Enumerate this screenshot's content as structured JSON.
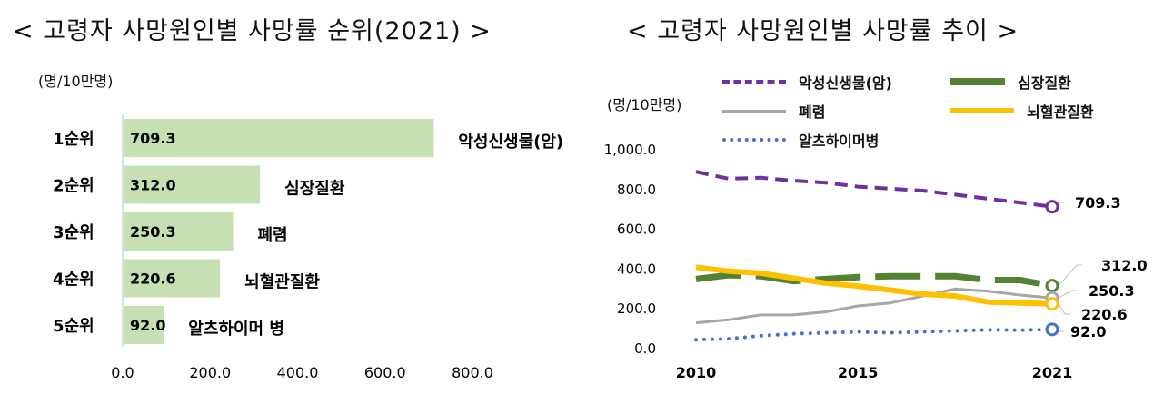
{
  "left_chart": {
    "title": "< 고령자 사망원인별 사망률 순위(2021) >",
    "unit": "(명/10만명)"
  },
  "right_chart": {
    "title": "< 고령자 사망원인별 사망률 추이 >",
    "unit": "(명/10만명)"
  },
  "colors": {
    "bar": "#c6e0b4",
    "cancer": "#7030a0",
    "heart": "#548235",
    "pneumonia": "#a6a6a6",
    "stroke": "#ffc000",
    "alzheimer": "#4472c4"
  },
  "chart_data": [
    {
      "type": "bar",
      "orientation": "horizontal",
      "categories": [
        "1순위",
        "2순위",
        "3순위",
        "4순위",
        "5순위"
      ],
      "values": [
        709.3,
        312.0,
        250.3,
        220.6,
        92.0
      ],
      "value_labels": [
        "709.3",
        "312.0",
        "250.3",
        "220.6",
        "92.0"
      ],
      "bar_names": [
        "악성신생물(암)",
        "심장질환",
        "폐렴",
        "뇌혈관질환",
        "알츠하이머 병"
      ],
      "xlim": [
        0,
        800
      ],
      "x_ticks": [
        "0.0",
        "200.0",
        "400.0",
        "600.0",
        "800.0"
      ],
      "grid": false
    },
    {
      "type": "line",
      "x": [
        2010,
        2011,
        2012,
        2013,
        2014,
        2015,
        2016,
        2017,
        2018,
        2019,
        2020,
        2021
      ],
      "x_ticks": [
        "2010",
        "2015",
        "2021"
      ],
      "ylim": [
        0,
        1000
      ],
      "y_ticks": [
        "0.0",
        "200.0",
        "400.0",
        "600.0",
        "800.0",
        "1,000.0"
      ],
      "grid": false,
      "legend_position": "top",
      "series": [
        {
          "name": "악성신생물(암)",
          "key": "cancer",
          "style": "dashed",
          "values": [
            885,
            850,
            855,
            840,
            830,
            810,
            800,
            790,
            770,
            750,
            730,
            709.3
          ],
          "end_label": "709.3"
        },
        {
          "name": "심장질환",
          "key": "heart",
          "style": "long-dashed",
          "values": [
            345,
            365,
            360,
            335,
            345,
            355,
            360,
            360,
            360,
            340,
            340,
            312.0
          ],
          "end_label": "312.0"
        },
        {
          "name": "폐렴",
          "key": "pneumonia",
          "style": "solid",
          "values": [
            125,
            140,
            165,
            165,
            180,
            210,
            225,
            260,
            295,
            285,
            265,
            250.3
          ],
          "end_label": "250.3"
        },
        {
          "name": "뇌혈관질환",
          "key": "stroke",
          "style": "solid",
          "values": [
            405,
            385,
            375,
            350,
            325,
            310,
            290,
            270,
            260,
            230,
            225,
            220.6
          ],
          "end_label": "220.6"
        },
        {
          "name": "알츠하이머병",
          "key": "alzheimer",
          "style": "dotted",
          "values": [
            40,
            45,
            60,
            70,
            75,
            80,
            75,
            80,
            85,
            90,
            88,
            92.0
          ],
          "end_label": "92.0"
        }
      ]
    }
  ]
}
